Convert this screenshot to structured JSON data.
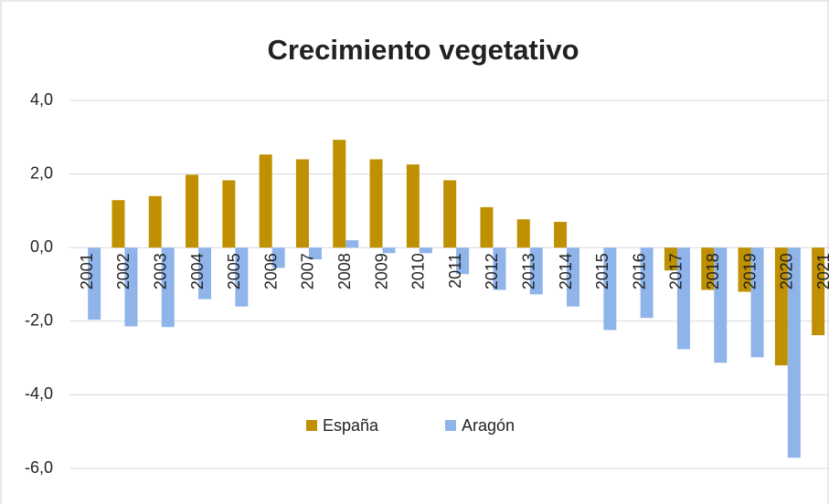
{
  "chart_data": {
    "type": "bar",
    "title": "Crecimiento vegetativo",
    "categories": [
      "2001",
      "2002",
      "2003",
      "2004",
      "2005",
      "2006",
      "2007",
      "2008",
      "2009",
      "2010",
      "2011",
      "2012",
      "2013",
      "2014",
      "2015",
      "2016",
      "2017",
      "2018",
      "2019",
      "2020",
      "2021"
    ],
    "series": [
      {
        "name": "España",
        "color": "#bf9000",
        "values": [
          0,
          1.29,
          1.4,
          1.98,
          1.83,
          2.53,
          2.4,
          2.93,
          2.4,
          2.26,
          1.83,
          1.1,
          0.77,
          0.7,
          0,
          0,
          -0.62,
          -1.15,
          -1.2,
          -3.2,
          -2.38
        ]
      },
      {
        "name": "Aragón",
        "color": "#8fb4ea",
        "values": [
          -1.96,
          -2.14,
          -2.16,
          -1.4,
          -1.6,
          -0.55,
          -0.32,
          0.2,
          -0.15,
          -0.15,
          -0.72,
          -1.15,
          -1.27,
          -1.6,
          -2.24,
          -1.91,
          -2.76,
          -3.13,
          -2.98,
          -5.71,
          null
        ]
      }
    ],
    "ylim": [
      -6,
      4
    ],
    "yticks": [
      {
        "value": -6,
        "label": "-6,0"
      },
      {
        "value": -4,
        "label": "-4,0"
      },
      {
        "value": -2,
        "label": "-2,0"
      },
      {
        "value": 0,
        "label": "0,0"
      },
      {
        "value": 2,
        "label": "2,0"
      },
      {
        "value": 4,
        "label": "4,0"
      }
    ],
    "grid": true,
    "legend": "bottom"
  }
}
